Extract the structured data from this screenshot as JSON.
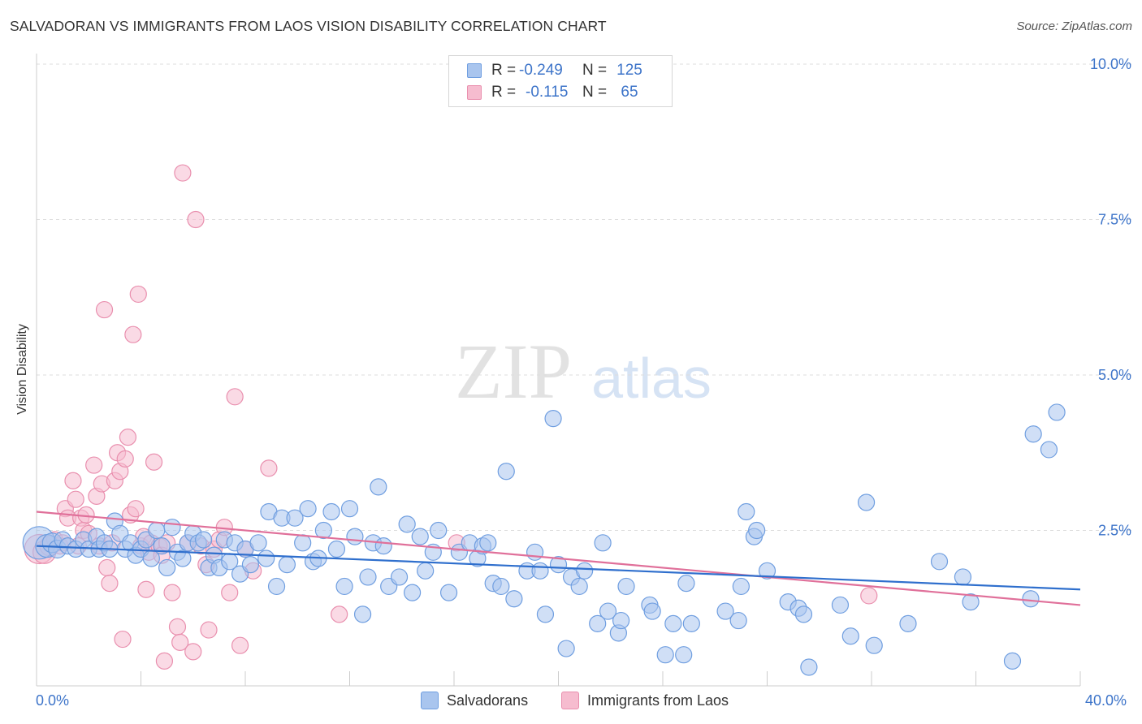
{
  "title": "SALVADORAN VS IMMIGRANTS FROM LAOS VISION DISABILITY CORRELATION CHART",
  "source": "Source: ZipAtlas.com",
  "watermark": {
    "zip": "ZIP",
    "atlas": "atlas"
  },
  "legend": {
    "series1": {
      "r_label": "R =",
      "r_value": "-0.249",
      "n_label": "N =",
      "n_value": "125"
    },
    "series2": {
      "r_label": "R =",
      "r_value": "-0.115",
      "n_label": "N =",
      "n_value": "65"
    }
  },
  "x_axis": {
    "min_label": "0.0%",
    "max_label": "40.0%"
  },
  "colors": {
    "blue_fill": "#a9c5ee",
    "blue_stroke": "#6f9ee0",
    "blue_line": "#2f6fcd",
    "pink_fill": "#f6bccf",
    "pink_stroke": "#e98fae",
    "pink_line": "#e0709a",
    "axis_text": "#3d74c9",
    "grid": "#dddddd"
  },
  "chart_data": {
    "type": "scatter",
    "title": "SALVADORAN VS IMMIGRANTS FROM LAOS VISION DISABILITY CORRELATION CHART",
    "xlabel": "",
    "ylabel": "Vision Disability",
    "xlim": [
      0,
      40
    ],
    "ylim": [
      0,
      10.5
    ],
    "yticks": [
      {
        "value": 2.5,
        "label": "2.5%"
      },
      {
        "value": 5.0,
        "label": "5.0%"
      },
      {
        "value": 7.5,
        "label": "7.5%"
      },
      {
        "value": 10.0,
        "label": "10.0%"
      }
    ],
    "grid": true,
    "legend_position": "top-center",
    "series": [
      {
        "name": "Salvadorans",
        "color": "#a9c5ee",
        "trend": {
          "x": [
            0,
            40
          ],
          "y": [
            2.25,
            1.55
          ]
        },
        "points": [
          [
            0.1,
            2.3,
            20
          ],
          [
            0.4,
            2.25,
            14
          ],
          [
            0.6,
            2.3,
            12
          ],
          [
            0.8,
            2.2,
            11
          ],
          [
            1.0,
            2.35,
            10
          ],
          [
            1.2,
            2.25,
            10
          ],
          [
            1.5,
            2.2,
            10
          ],
          [
            1.8,
            2.35,
            10
          ],
          [
            2.0,
            2.2,
            10
          ],
          [
            2.3,
            2.4,
            10
          ],
          [
            2.4,
            2.2,
            10
          ],
          [
            2.6,
            2.3,
            10
          ],
          [
            2.8,
            2.2,
            10
          ],
          [
            3.0,
            2.65,
            10
          ],
          [
            3.2,
            2.45,
            10
          ],
          [
            3.4,
            2.2,
            10
          ],
          [
            3.6,
            2.3,
            10
          ],
          [
            3.8,
            2.1,
            10
          ],
          [
            4.0,
            2.2,
            10
          ],
          [
            4.2,
            2.35,
            10
          ],
          [
            4.4,
            2.05,
            10
          ],
          [
            4.6,
            2.5,
            10
          ],
          [
            4.8,
            2.25,
            10
          ],
          [
            5.0,
            1.9,
            10
          ],
          [
            5.2,
            2.55,
            10
          ],
          [
            5.4,
            2.15,
            10
          ],
          [
            5.6,
            2.05,
            10
          ],
          [
            5.8,
            2.3,
            10
          ],
          [
            6.0,
            2.45,
            10
          ],
          [
            6.2,
            2.3,
            10
          ],
          [
            6.4,
            2.35,
            10
          ],
          [
            6.6,
            1.9,
            10
          ],
          [
            6.8,
            2.1,
            10
          ],
          [
            7.0,
            1.9,
            10
          ],
          [
            7.2,
            2.35,
            10
          ],
          [
            7.4,
            2.0,
            10
          ],
          [
            7.6,
            2.3,
            10
          ],
          [
            7.8,
            1.8,
            10
          ],
          [
            8.0,
            2.2,
            10
          ],
          [
            8.2,
            1.95,
            10
          ],
          [
            8.5,
            2.3,
            10
          ],
          [
            8.8,
            2.05,
            10
          ],
          [
            8.9,
            2.8,
            10
          ],
          [
            9.2,
            1.6,
            10
          ],
          [
            9.4,
            2.7,
            10
          ],
          [
            9.6,
            1.95,
            10
          ],
          [
            9.9,
            2.7,
            10
          ],
          [
            10.2,
            2.3,
            10
          ],
          [
            10.4,
            2.85,
            10
          ],
          [
            10.6,
            2.0,
            10
          ],
          [
            10.8,
            2.05,
            10
          ],
          [
            11.0,
            2.5,
            10
          ],
          [
            11.3,
            2.8,
            10
          ],
          [
            11.5,
            2.2,
            10
          ],
          [
            11.8,
            1.6,
            10
          ],
          [
            12.0,
            2.85,
            10
          ],
          [
            12.2,
            2.4,
            10
          ],
          [
            12.5,
            1.15,
            10
          ],
          [
            12.7,
            1.75,
            10
          ],
          [
            12.9,
            2.3,
            10
          ],
          [
            13.1,
            3.2,
            10
          ],
          [
            13.3,
            2.25,
            10
          ],
          [
            13.5,
            1.6,
            10
          ],
          [
            13.9,
            1.75,
            10
          ],
          [
            14.2,
            2.6,
            10
          ],
          [
            14.4,
            1.5,
            10
          ],
          [
            14.7,
            2.4,
            10
          ],
          [
            14.9,
            1.85,
            10
          ],
          [
            15.2,
            2.15,
            10
          ],
          [
            15.4,
            2.5,
            10
          ],
          [
            15.8,
            1.5,
            10
          ],
          [
            16.2,
            2.15,
            10
          ],
          [
            16.6,
            2.3,
            10
          ],
          [
            16.9,
            2.05,
            10
          ],
          [
            17.1,
            2.25,
            10
          ],
          [
            17.3,
            2.3,
            10
          ],
          [
            17.5,
            1.65,
            10
          ],
          [
            17.8,
            1.6,
            10
          ],
          [
            18.0,
            3.45,
            10
          ],
          [
            18.3,
            1.4,
            10
          ],
          [
            18.8,
            1.85,
            10
          ],
          [
            19.1,
            2.15,
            10
          ],
          [
            19.3,
            1.85,
            10
          ],
          [
            19.5,
            1.15,
            10
          ],
          [
            19.8,
            4.3,
            10
          ],
          [
            20.0,
            1.95,
            10
          ],
          [
            20.3,
            0.6,
            10
          ],
          [
            20.5,
            1.75,
            10
          ],
          [
            20.8,
            1.6,
            10
          ],
          [
            21.0,
            1.85,
            10
          ],
          [
            21.5,
            1.0,
            10
          ],
          [
            21.7,
            2.3,
            10
          ],
          [
            21.9,
            1.2,
            10
          ],
          [
            22.3,
            0.85,
            10
          ],
          [
            22.4,
            1.05,
            10
          ],
          [
            22.6,
            1.6,
            10
          ],
          [
            23.5,
            1.3,
            10
          ],
          [
            23.6,
            1.2,
            10
          ],
          [
            24.1,
            0.5,
            10
          ],
          [
            24.4,
            1.0,
            10
          ],
          [
            24.8,
            0.5,
            10
          ],
          [
            24.9,
            1.65,
            10
          ],
          [
            25.1,
            1.0,
            10
          ],
          [
            26.4,
            1.2,
            10
          ],
          [
            26.9,
            1.05,
            10
          ],
          [
            27.0,
            1.6,
            10
          ],
          [
            27.2,
            2.8,
            10
          ],
          [
            27.5,
            2.4,
            10
          ],
          [
            27.6,
            2.5,
            10
          ],
          [
            28.0,
            1.85,
            10
          ],
          [
            28.8,
            1.35,
            10
          ],
          [
            29.2,
            1.25,
            10
          ],
          [
            29.4,
            1.15,
            10
          ],
          [
            29.6,
            0.3,
            10
          ],
          [
            30.8,
            1.3,
            10
          ],
          [
            31.2,
            0.8,
            10
          ],
          [
            31.8,
            2.95,
            10
          ],
          [
            32.1,
            0.65,
            10
          ],
          [
            33.4,
            1.0,
            10
          ],
          [
            34.6,
            2.0,
            10
          ],
          [
            35.5,
            1.75,
            10
          ],
          [
            35.8,
            1.35,
            10
          ],
          [
            37.4,
            0.4,
            10
          ],
          [
            38.1,
            1.4,
            10
          ],
          [
            38.2,
            4.05,
            10
          ],
          [
            38.8,
            3.8,
            10
          ],
          [
            39.1,
            4.4,
            10
          ]
        ]
      },
      {
        "name": "Immigrants from Laos",
        "color": "#f6bccf",
        "trend": {
          "x": [
            0,
            40
          ],
          "y": [
            2.8,
            1.3
          ]
        },
        "points": [
          [
            0.1,
            2.2,
            18
          ],
          [
            0.3,
            2.15,
            14
          ],
          [
            0.5,
            2.25,
            12
          ],
          [
            0.7,
            2.35,
            10
          ],
          [
            0.9,
            2.25,
            10
          ],
          [
            1.0,
            2.3,
            10
          ],
          [
            1.1,
            2.85,
            10
          ],
          [
            1.2,
            2.7,
            10
          ],
          [
            1.4,
            3.3,
            10
          ],
          [
            1.5,
            3.0,
            10
          ],
          [
            1.6,
            2.25,
            10
          ],
          [
            1.7,
            2.7,
            10
          ],
          [
            1.8,
            2.5,
            10
          ],
          [
            1.9,
            2.75,
            10
          ],
          [
            2.0,
            2.45,
            10
          ],
          [
            2.2,
            3.55,
            10
          ],
          [
            2.3,
            3.05,
            10
          ],
          [
            2.4,
            2.25,
            10
          ],
          [
            2.5,
            3.25,
            10
          ],
          [
            2.6,
            6.05,
            10
          ],
          [
            2.7,
            1.9,
            10
          ],
          [
            2.8,
            1.65,
            10
          ],
          [
            2.9,
            2.3,
            10
          ],
          [
            3.0,
            3.3,
            10
          ],
          [
            3.1,
            3.75,
            10
          ],
          [
            3.2,
            3.45,
            10
          ],
          [
            3.3,
            0.75,
            10
          ],
          [
            3.4,
            3.65,
            10
          ],
          [
            3.5,
            4.0,
            10
          ],
          [
            3.6,
            2.75,
            10
          ],
          [
            3.7,
            5.65,
            10
          ],
          [
            3.8,
            2.85,
            10
          ],
          [
            3.9,
            6.3,
            10
          ],
          [
            4.0,
            2.25,
            10
          ],
          [
            4.1,
            2.4,
            10
          ],
          [
            4.2,
            1.55,
            10
          ],
          [
            4.3,
            2.15,
            10
          ],
          [
            4.4,
            2.3,
            10
          ],
          [
            4.5,
            3.6,
            10
          ],
          [
            4.7,
            2.25,
            10
          ],
          [
            4.8,
            2.1,
            10
          ],
          [
            4.9,
            0.4,
            10
          ],
          [
            5.0,
            2.3,
            10
          ],
          [
            5.2,
            1.5,
            10
          ],
          [
            5.4,
            0.95,
            10
          ],
          [
            5.5,
            0.7,
            10
          ],
          [
            5.6,
            8.25,
            10
          ],
          [
            5.8,
            2.3,
            10
          ],
          [
            6.0,
            0.55,
            10
          ],
          [
            6.1,
            7.5,
            10
          ],
          [
            6.3,
            2.25,
            10
          ],
          [
            6.5,
            1.95,
            10
          ],
          [
            6.6,
            0.9,
            10
          ],
          [
            6.8,
            2.2,
            10
          ],
          [
            7.0,
            2.35,
            10
          ],
          [
            7.2,
            2.55,
            10
          ],
          [
            7.4,
            1.5,
            10
          ],
          [
            7.6,
            4.65,
            10
          ],
          [
            7.8,
            0.65,
            10
          ],
          [
            8.0,
            2.2,
            10
          ],
          [
            8.3,
            1.85,
            10
          ],
          [
            8.9,
            3.5,
            10
          ],
          [
            11.6,
            1.15,
            10
          ],
          [
            16.1,
            2.3,
            10
          ],
          [
            31.9,
            1.45,
            10
          ]
        ]
      }
    ]
  },
  "bottom_legend": {
    "series1": "Salvadorans",
    "series2": "Immigrants from Laos"
  }
}
